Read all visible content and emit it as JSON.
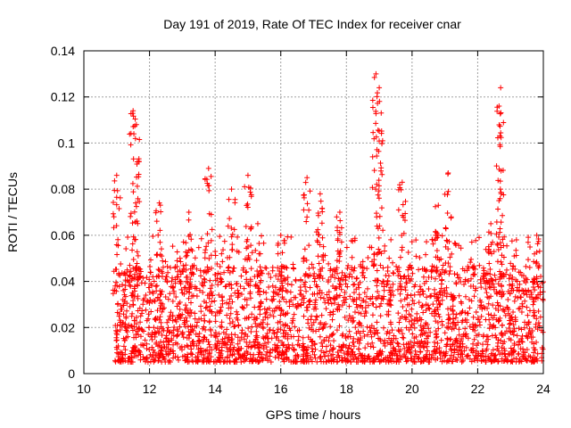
{
  "chart_data": {
    "type": "scatter",
    "title": "Day 191 of 2019, Rate Of TEC Index for receiver cnar",
    "xlabel": "GPS time / hours",
    "ylabel": "ROTI / TECUs",
    "xlim": [
      10,
      24
    ],
    "ylim": [
      0,
      0.14
    ],
    "xticks": [
      10,
      12,
      14,
      16,
      18,
      20,
      22,
      24
    ],
    "yticks": [
      0,
      0.02,
      0.04,
      0.06,
      0.08,
      0.1,
      0.12,
      0.14
    ],
    "xtick_labels": [
      "10",
      "12",
      "14",
      "16",
      "18",
      "20",
      "22",
      "24"
    ],
    "ytick_labels": [
      "0",
      "0.02",
      "0.04",
      "0.06",
      "0.08",
      "0.1",
      "0.12",
      "0.14"
    ],
    "grid": true,
    "marker": "+",
    "color": "#ff0000",
    "series": [
      {
        "name": "ROTI",
        "data_start_hour": 10.95,
        "data_end_hour": 24.0,
        "typical_range": [
          0.005,
          0.04
        ],
        "peaks": [
          {
            "x": 11.0,
            "y": 0.086
          },
          {
            "x": 11.5,
            "y": 0.114
          },
          {
            "x": 11.6,
            "y": 0.108
          },
          {
            "x": 12.3,
            "y": 0.074
          },
          {
            "x": 13.2,
            "y": 0.07
          },
          {
            "x": 13.8,
            "y": 0.089
          },
          {
            "x": 14.5,
            "y": 0.08
          },
          {
            "x": 15.0,
            "y": 0.086
          },
          {
            "x": 15.3,
            "y": 0.065
          },
          {
            "x": 16.0,
            "y": 0.06
          },
          {
            "x": 16.8,
            "y": 0.085
          },
          {
            "x": 17.2,
            "y": 0.078
          },
          {
            "x": 17.8,
            "y": 0.07
          },
          {
            "x": 18.9,
            "y": 0.13
          },
          {
            "x": 19.0,
            "y": 0.124
          },
          {
            "x": 19.7,
            "y": 0.083
          },
          {
            "x": 20.8,
            "y": 0.073
          },
          {
            "x": 21.1,
            "y": 0.087
          },
          {
            "x": 22.4,
            "y": 0.065
          },
          {
            "x": 22.7,
            "y": 0.124
          },
          {
            "x": 22.65,
            "y": 0.116
          },
          {
            "x": 23.8,
            "y": 0.06
          }
        ]
      }
    ]
  }
}
